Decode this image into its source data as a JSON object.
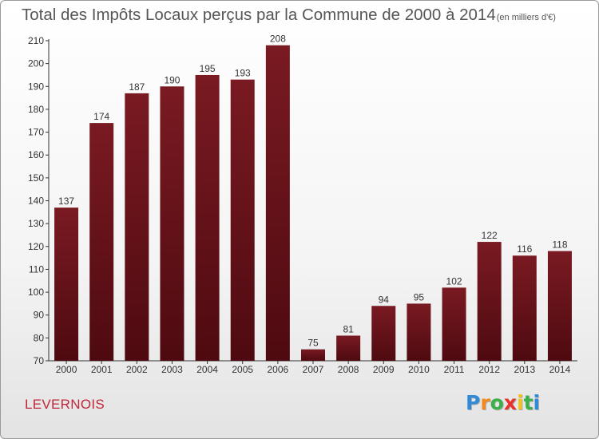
{
  "chart_data": {
    "type": "bar",
    "title": "Total des Impôts Locaux perçus par la Commune de 2000 à 2014",
    "unit_label": "(en milliers d'€)",
    "categories": [
      "2000",
      "2001",
      "2002",
      "2003",
      "2004",
      "2005",
      "2006",
      "2007",
      "2008",
      "2009",
      "2010",
      "2011",
      "2012",
      "2013",
      "2014"
    ],
    "values": [
      137,
      174,
      187,
      190,
      195,
      193,
      208,
      75,
      81,
      94,
      95,
      102,
      122,
      116,
      118
    ],
    "ylim": [
      70,
      210
    ],
    "yticks": [
      70,
      80,
      90,
      100,
      110,
      120,
      130,
      140,
      150,
      160,
      170,
      180,
      190,
      200,
      210
    ],
    "xlabel": "",
    "ylabel": "",
    "grid": false,
    "bar_color": "#7a1a22",
    "bar_color_dark": "#4e0a10"
  },
  "commune": "LEVERNOIS",
  "logo": {
    "letters": [
      "P",
      "r",
      "o",
      "x",
      "i",
      "t",
      "i"
    ],
    "colors": [
      "#2f8ad8",
      "#f28a1e",
      "#3bb04a",
      "#e8312b",
      "#f4c21a",
      "#3bb04a",
      "#2f8ad8"
    ]
  }
}
